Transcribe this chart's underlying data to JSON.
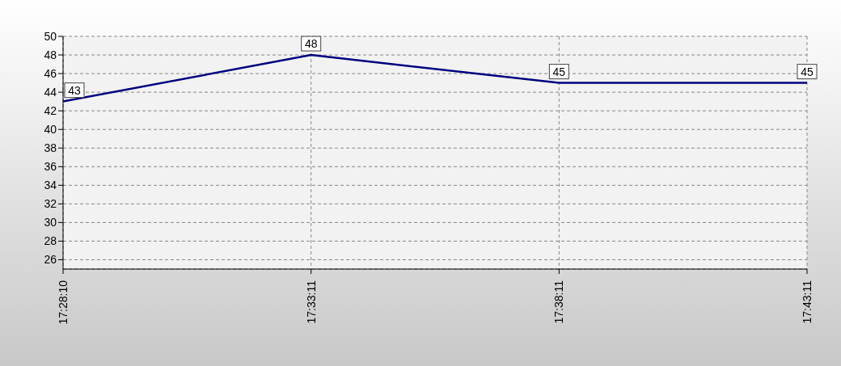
{
  "chart_data": {
    "type": "line",
    "categories": [
      "17:28:10",
      "17:33:11",
      "17:38:11",
      "17:43:11"
    ],
    "series": [
      {
        "color": "#000080",
        "values": [
          43,
          48,
          45,
          45
        ]
      }
    ],
    "ylim": [
      25,
      50
    ],
    "yticks": [
      26,
      28,
      30,
      32,
      34,
      36,
      38,
      40,
      42,
      44,
      46,
      48,
      50
    ],
    "grid": true,
    "data_labels": true,
    "marker": "none",
    "line_style": "solid",
    "legend": false
  }
}
